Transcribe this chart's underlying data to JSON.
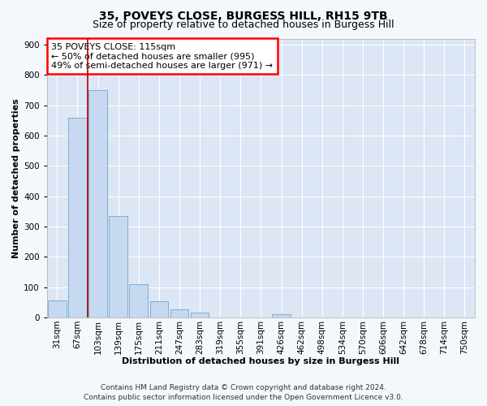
{
  "title1": "35, POVEYS CLOSE, BURGESS HILL, RH15 9TB",
  "title2": "Size of property relative to detached houses in Burgess Hill",
  "xlabel": "Distribution of detached houses by size in Burgess Hill",
  "ylabel": "Number of detached properties",
  "bin_labels": [
    "31sqm",
    "67sqm",
    "103sqm",
    "139sqm",
    "175sqm",
    "211sqm",
    "247sqm",
    "283sqm",
    "319sqm",
    "355sqm",
    "391sqm",
    "426sqm",
    "462sqm",
    "498sqm",
    "534sqm",
    "570sqm",
    "606sqm",
    "642sqm",
    "678sqm",
    "714sqm",
    "750sqm"
  ],
  "bar_values": [
    55,
    660,
    750,
    335,
    110,
    53,
    27,
    15,
    0,
    0,
    0,
    10,
    0,
    0,
    0,
    0,
    0,
    0,
    0,
    0,
    0
  ],
  "bar_color": "#c6d9f0",
  "bar_edge_color": "#7bafd4",
  "vline_x": 1.5,
  "vline_color": "#aa0000",
  "ylim": [
    0,
    920
  ],
  "yticks": [
    0,
    100,
    200,
    300,
    400,
    500,
    600,
    700,
    800,
    900
  ],
  "annotation_box_text": "35 POVEYS CLOSE: 115sqm\n← 50% of detached houses are smaller (995)\n49% of semi-detached houses are larger (971) →",
  "footnote1": "Contains HM Land Registry data © Crown copyright and database right 2024.",
  "footnote2": "Contains public sector information licensed under the Open Government Licence v3.0.",
  "fig_background": "#f4f7fc",
  "background_color": "#dce6f5",
  "grid_color": "#ffffff",
  "title_fontsize": 10,
  "subtitle_fontsize": 9,
  "axis_label_fontsize": 8,
  "tick_fontsize": 7.5,
  "annotation_fontsize": 8,
  "footnote_fontsize": 6.5
}
